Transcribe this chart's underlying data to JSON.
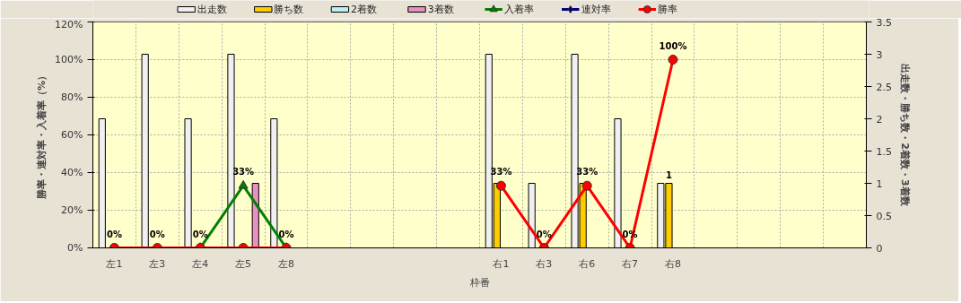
{
  "chart_data": {
    "type": "bar",
    "xlabel": "枠番",
    "ylabel": "勝率・連対率・入着率（%）",
    "y2label": "出走数・勝ち数・2着数・3着数",
    "categories": [
      "左1",
      "左3",
      "左4",
      "左5",
      "左8",
      null,
      null,
      null,
      null,
      "右1",
      "右3",
      "右6",
      "右7",
      "右8",
      null,
      null,
      null,
      null
    ],
    "series": [
      {
        "name": "出走数",
        "axis": "y2",
        "color": "#f0f0f0",
        "values": [
          2,
          3,
          2,
          3,
          2,
          null,
          null,
          null,
          null,
          3,
          1,
          3,
          2,
          1,
          null,
          null,
          null,
          null
        ]
      },
      {
        "name": "勝ち数",
        "axis": "y2",
        "color": "#ffcc00",
        "values": [
          0,
          0,
          0,
          0,
          0,
          null,
          null,
          null,
          null,
          1,
          0,
          1,
          0,
          1,
          null,
          null,
          null,
          null
        ],
        "value_labels": [
          null,
          null,
          null,
          null,
          null,
          null,
          null,
          null,
          null,
          null,
          null,
          null,
          null,
          "1",
          null,
          null,
          null,
          null
        ]
      },
      {
        "name": "2着数",
        "axis": "y2",
        "color": "#bfeff0",
        "values": [
          0,
          0,
          0,
          0,
          0,
          null,
          null,
          null,
          null,
          0,
          0,
          0,
          0,
          0,
          null,
          null,
          null,
          null
        ]
      },
      {
        "name": "3着数",
        "axis": "y2",
        "color": "#e890c0",
        "values": [
          0,
          0,
          0,
          1,
          0,
          null,
          null,
          null,
          null,
          0,
          0,
          0,
          0,
          0,
          null,
          null,
          null,
          null
        ]
      },
      {
        "name": "入着率",
        "type": "line",
        "marker": "triangle",
        "color": "#008000",
        "values": [
          null,
          null,
          0,
          33,
          0,
          null,
          null,
          null,
          null,
          null,
          null,
          null,
          null,
          null,
          null,
          null,
          null,
          null
        ],
        "value_labels": [
          null,
          null,
          null,
          "33%",
          null,
          null,
          null,
          null,
          null,
          null,
          null,
          null,
          null,
          null,
          null,
          null,
          null,
          null
        ]
      },
      {
        "name": "連対率",
        "type": "line",
        "marker": "diamond",
        "color": "#000080",
        "values": [
          null,
          null,
          null,
          null,
          null,
          null,
          null,
          null,
          null,
          null,
          null,
          null,
          null,
          null,
          null,
          null,
          null,
          null
        ]
      },
      {
        "name": "勝率",
        "type": "line",
        "marker": "circle",
        "color": "#ff0000",
        "values": [
          0,
          0,
          0,
          0,
          0,
          null,
          null,
          null,
          null,
          33,
          0,
          33,
          0,
          100,
          null,
          null,
          null,
          null
        ],
        "value_labels": [
          "0%",
          "0%",
          "0%",
          null,
          "0%",
          null,
          null,
          null,
          null,
          "33%",
          "0%",
          "33%",
          "0%",
          "100%",
          null,
          null,
          null,
          null
        ]
      }
    ],
    "ylim": [
      0,
      120
    ],
    "yticks": [
      {
        "value": 0,
        "label": "0%"
      },
      {
        "value": 20,
        "label": "20%"
      },
      {
        "value": 40,
        "label": "40%"
      },
      {
        "value": 60,
        "label": "60%"
      },
      {
        "value": 80,
        "label": "80%"
      },
      {
        "value": 100,
        "label": "100%"
      },
      {
        "value": 120,
        "label": "120%"
      }
    ],
    "y2lim": [
      0,
      3.5
    ],
    "y2ticks": [
      0,
      0.5,
      1,
      1.5,
      2,
      2.5,
      3,
      3.5
    ],
    "grid": true,
    "legend": "top"
  }
}
